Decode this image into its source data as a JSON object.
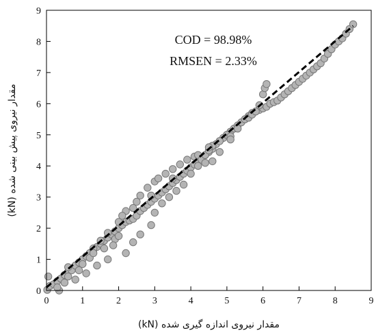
{
  "chart_data": {
    "type": "scatter",
    "xlabel": "مقدار نیروی اندازه گیری شده (kN)",
    "ylabel": "مقدار نیروی پیش بینی شده (kN)",
    "xlim": [
      0,
      9
    ],
    "ylim": [
      0,
      9
    ],
    "xticks": [
      "0",
      "1",
      "2",
      "3",
      "4",
      "5",
      "6",
      "7",
      "8",
      "9"
    ],
    "yticks": [
      "0",
      "1",
      "2",
      "3",
      "4",
      "5",
      "6",
      "7",
      "8",
      "9"
    ],
    "annotations": [
      "COD = 98.98%",
      "RMSEN = 2.33%"
    ],
    "grid": false,
    "colors": {
      "marker_fill": "#b4b4b4",
      "marker_edge": "#777777",
      "fit_line": "#000000"
    },
    "fit_line": {
      "style": "dashed",
      "points": [
        [
          0,
          0.1
        ],
        [
          8.5,
          8.5
        ]
      ]
    },
    "series": [
      {
        "values": [
          [
            0.02,
            0.02
          ],
          [
            0.1,
            0.15
          ],
          [
            0.2,
            0.2
          ],
          [
            0.3,
            0.3
          ],
          [
            0.4,
            0.38
          ],
          [
            0.5,
            0.5
          ],
          [
            0.6,
            0.6
          ],
          [
            0.7,
            0.65
          ],
          [
            0.8,
            0.8
          ],
          [
            0.9,
            0.9
          ],
          [
            1.0,
            1.0
          ],
          [
            1.1,
            1.1
          ],
          [
            1.2,
            1.2
          ],
          [
            1.3,
            1.3
          ],
          [
            1.4,
            1.4
          ],
          [
            1.5,
            1.5
          ],
          [
            1.6,
            1.6
          ],
          [
            1.7,
            1.7
          ],
          [
            1.8,
            1.8
          ],
          [
            1.9,
            1.9
          ],
          [
            2.0,
            2.0
          ],
          [
            2.1,
            2.1
          ],
          [
            2.2,
            2.2
          ],
          [
            2.3,
            2.25
          ],
          [
            2.4,
            2.3
          ],
          [
            2.5,
            2.4
          ],
          [
            2.6,
            2.55
          ],
          [
            2.7,
            2.65
          ],
          [
            2.8,
            2.75
          ],
          [
            2.9,
            2.85
          ],
          [
            3.0,
            2.95
          ],
          [
            3.1,
            3.05
          ],
          [
            3.2,
            3.15
          ],
          [
            3.3,
            3.25
          ],
          [
            3.4,
            3.35
          ],
          [
            3.5,
            3.45
          ],
          [
            3.6,
            3.55
          ],
          [
            3.7,
            3.65
          ],
          [
            3.8,
            3.75
          ],
          [
            3.9,
            3.85
          ],
          [
            4.0,
            3.95
          ],
          [
            4.1,
            4.05
          ],
          [
            4.2,
            4.15
          ],
          [
            4.3,
            4.25
          ],
          [
            4.4,
            4.35
          ],
          [
            4.5,
            4.45
          ],
          [
            4.6,
            4.55
          ],
          [
            4.7,
            4.7
          ],
          [
            4.8,
            4.8
          ],
          [
            4.9,
            4.9
          ],
          [
            5.0,
            5.0
          ],
          [
            5.1,
            5.1
          ],
          [
            5.2,
            5.2
          ],
          [
            5.3,
            5.3
          ],
          [
            5.4,
            5.4
          ],
          [
            5.5,
            5.5
          ],
          [
            5.6,
            5.6
          ],
          [
            5.7,
            5.7
          ],
          [
            5.8,
            5.75
          ],
          [
            5.9,
            5.8
          ],
          [
            6.0,
            5.85
          ],
          [
            6.1,
            5.9
          ],
          [
            6.2,
            6.0
          ],
          [
            6.3,
            6.05
          ],
          [
            6.4,
            6.1
          ],
          [
            6.5,
            6.2
          ],
          [
            6.6,
            6.3
          ],
          [
            6.7,
            6.4
          ],
          [
            6.8,
            6.5
          ],
          [
            6.9,
            6.6
          ],
          [
            7.0,
            6.7
          ],
          [
            7.1,
            6.8
          ],
          [
            7.2,
            6.9
          ],
          [
            7.3,
            7.0
          ],
          [
            7.4,
            7.1
          ],
          [
            7.5,
            7.2
          ],
          [
            7.6,
            7.3
          ],
          [
            7.7,
            7.45
          ],
          [
            7.8,
            7.6
          ],
          [
            7.9,
            7.75
          ],
          [
            8.0,
            7.9
          ],
          [
            8.1,
            8.0
          ],
          [
            8.2,
            8.1
          ],
          [
            8.3,
            8.25
          ],
          [
            8.4,
            8.4
          ],
          [
            8.5,
            8.55
          ],
          [
            0.05,
            0.45
          ],
          [
            0.35,
            0.0
          ],
          [
            0.5,
            0.25
          ],
          [
            0.6,
            0.75
          ],
          [
            0.8,
            0.35
          ],
          [
            0.9,
            0.65
          ],
          [
            1.0,
            0.85
          ],
          [
            1.1,
            0.55
          ],
          [
            1.2,
            1.05
          ],
          [
            1.3,
            1.35
          ],
          [
            1.4,
            0.8
          ],
          [
            1.5,
            1.6
          ],
          [
            1.6,
            1.35
          ],
          [
            1.7,
            1.85
          ],
          [
            1.9,
            1.65
          ],
          [
            2.0,
            2.2
          ],
          [
            2.2,
            2.55
          ],
          [
            2.4,
            2.65
          ],
          [
            2.5,
            2.85
          ],
          [
            2.6,
            3.05
          ],
          [
            2.8,
            3.3
          ],
          [
            3.0,
            3.5
          ],
          [
            3.1,
            3.6
          ],
          [
            3.3,
            3.75
          ],
          [
            3.5,
            3.9
          ],
          [
            3.7,
            4.05
          ],
          [
            3.9,
            4.2
          ],
          [
            4.1,
            4.3
          ],
          [
            4.2,
            4.35
          ],
          [
            4.3,
            4.2
          ],
          [
            4.4,
            4.35
          ],
          [
            4.5,
            4.5
          ],
          [
            4.6,
            4.65
          ],
          [
            4.8,
            4.8
          ],
          [
            5.0,
            5.0
          ],
          [
            5.1,
            4.95
          ],
          [
            1.7,
            1.0
          ],
          [
            1.85,
            1.45
          ],
          [
            2.0,
            1.75
          ],
          [
            2.2,
            1.2
          ],
          [
            2.4,
            1.55
          ],
          [
            2.6,
            1.8
          ],
          [
            2.9,
            2.1
          ],
          [
            3.0,
            2.5
          ],
          [
            3.2,
            2.8
          ],
          [
            3.4,
            3.0
          ],
          [
            3.6,
            3.2
          ],
          [
            3.8,
            3.4
          ],
          [
            4.0,
            3.75
          ],
          [
            4.2,
            4.0
          ],
          [
            4.4,
            4.1
          ],
          [
            4.6,
            4.15
          ],
          [
            4.8,
            4.45
          ],
          [
            5.1,
            4.85
          ],
          [
            5.3,
            5.2
          ],
          [
            5.5,
            5.5
          ],
          [
            5.6,
            5.55
          ],
          [
            5.7,
            5.65
          ],
          [
            5.8,
            5.75
          ],
          [
            5.9,
            5.95
          ],
          [
            6.0,
            6.3
          ],
          [
            6.05,
            6.5
          ],
          [
            6.1,
            6.63
          ],
          [
            0.3,
            0.1
          ],
          [
            0.6,
            0.45
          ],
          [
            1.3,
            1.2
          ],
          [
            2.1,
            2.4
          ],
          [
            2.9,
            3.05
          ],
          [
            3.5,
            3.6
          ],
          [
            4.5,
            4.6
          ]
        ]
      }
    ]
  }
}
